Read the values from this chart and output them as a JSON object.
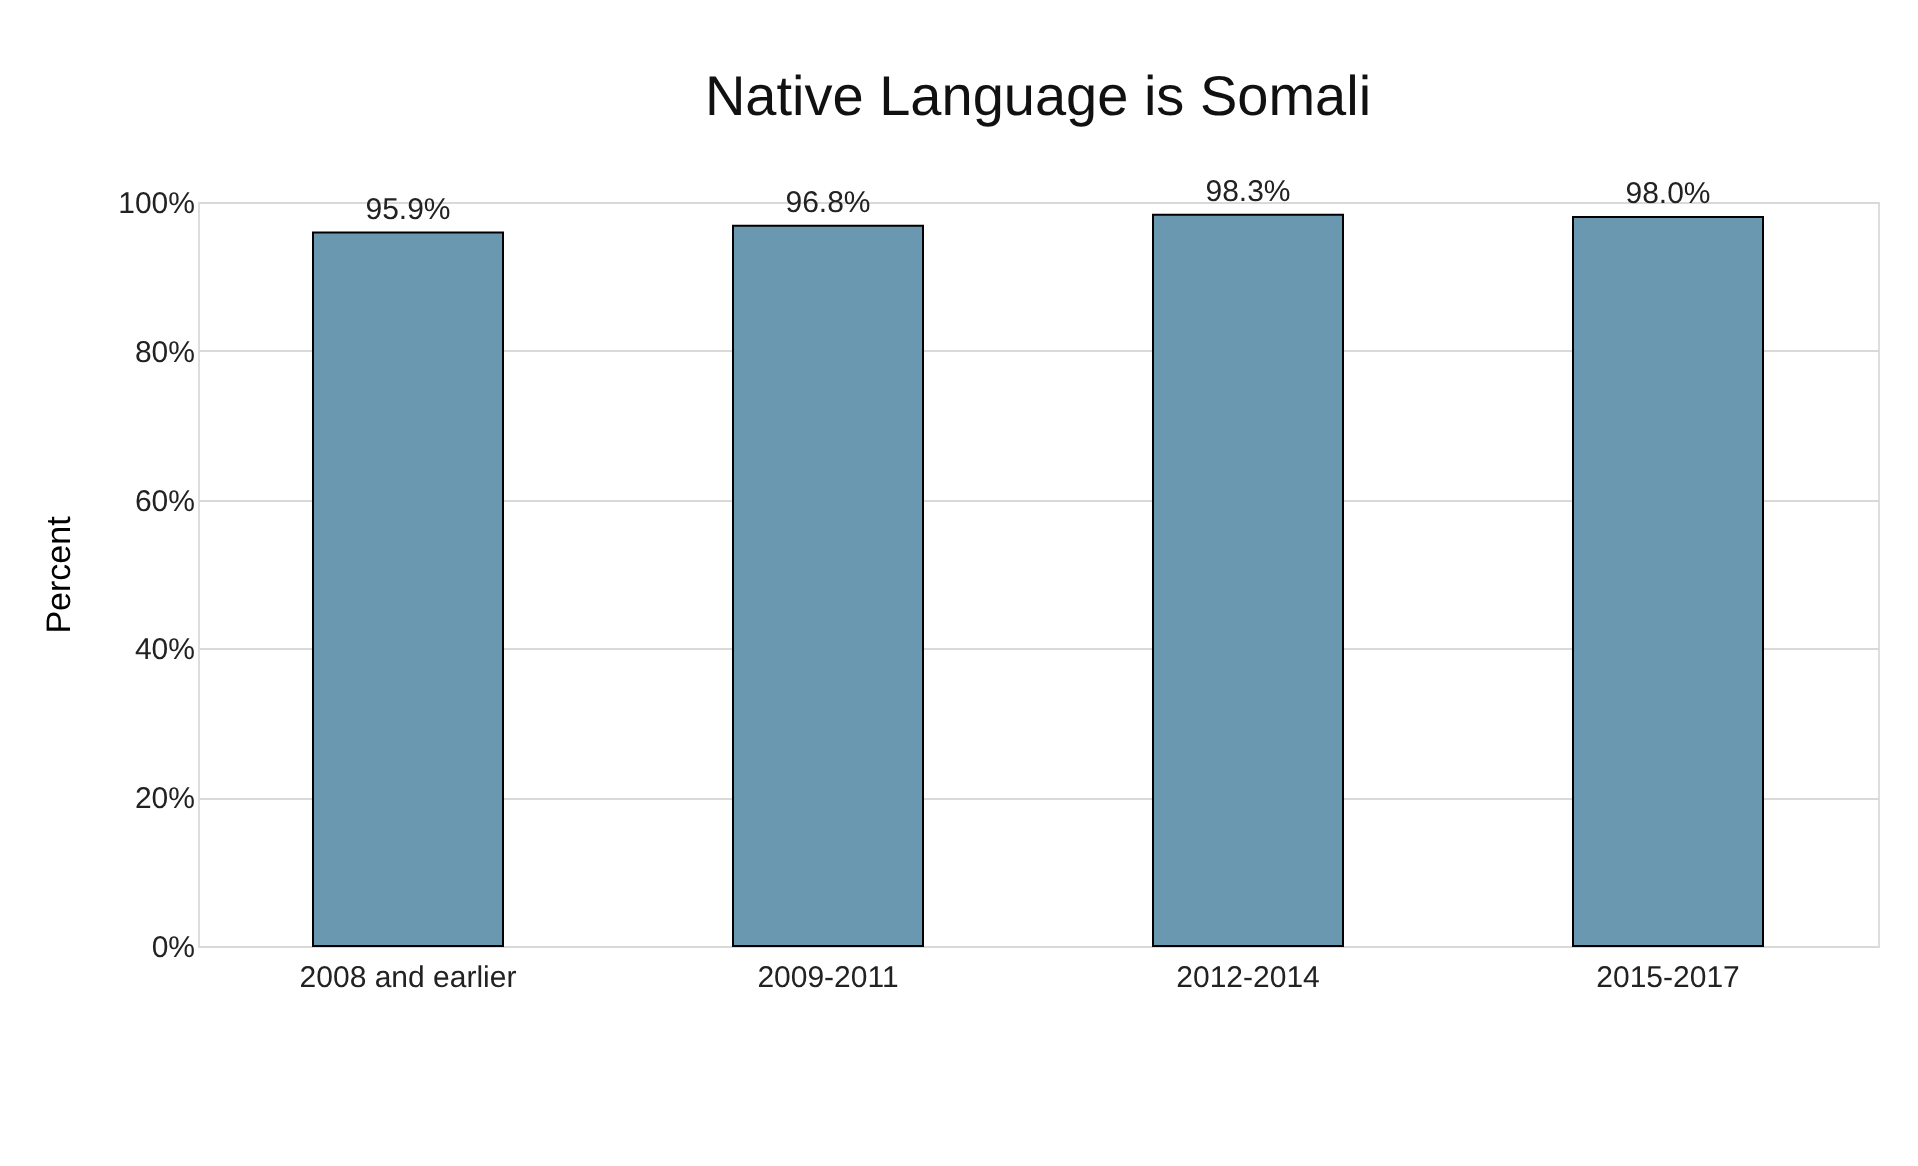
{
  "chart_data": {
    "type": "bar",
    "title": "Native Language is Somali",
    "ylabel": "Percent",
    "categories": [
      "2008 and earlier",
      "2009-2011",
      "2012-2014",
      "2015-2017"
    ],
    "values": [
      95.9,
      96.8,
      98.3,
      98.0
    ],
    "value_labels": [
      "95.9%",
      "96.8%",
      "98.3%",
      "98.0%"
    ],
    "color": "#6a98b0",
    "ylim": [
      0,
      100
    ],
    "yticks": [
      {
        "value": 0,
        "label": "0%"
      },
      {
        "value": 20,
        "label": "20%"
      },
      {
        "value": 40,
        "label": "40%"
      },
      {
        "value": 60,
        "label": "60%"
      },
      {
        "value": 80,
        "label": "80%"
      },
      {
        "value": 100,
        "label": "100%"
      }
    ],
    "grid": "y"
  }
}
